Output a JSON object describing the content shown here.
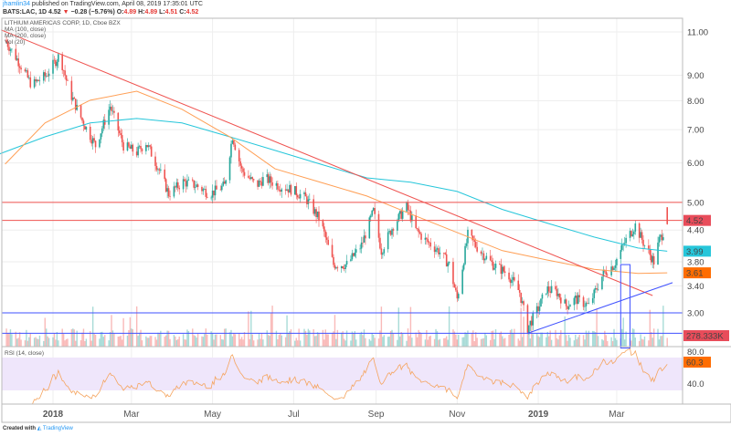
{
  "header": {
    "author": "jhamlin34",
    "published": "published on TradingView.com, April 08, 2019 17:35:01 UTC",
    "symbol": "BATS:LAC, 1D",
    "last": "4.52",
    "change": "−0.28 (−5.76%)",
    "o_label": "O:",
    "o": "4.89",
    "h_label": "H:",
    "h": "4.89",
    "l_label": "L:",
    "l": "4.51",
    "c_label": "C:",
    "c": "4.52"
  },
  "legend": {
    "title": "LITHIUM AMERICAS CORP, 1D, Cboe BZX",
    "ma100": "MA (100, close)",
    "ma200": "MA (200, close)",
    "vol": "Vol (20)",
    "rsi": "RSI (14, close)"
  },
  "footer": {
    "created": "Created with",
    "brand": "TradingView"
  },
  "chart_data": {
    "type": "candlestick",
    "price_scale": "log",
    "ylim": [
      2.6,
      11.5
    ],
    "y_ticks": [
      "11.00",
      "9.00",
      "8.00",
      "7.00",
      "6.00",
      "5.00",
      "4.40",
      "3.80",
      "3.40",
      "3.00"
    ],
    "x_ticks": [
      {
        "label": "2018",
        "date": "2018-01-01",
        "bold": true
      },
      {
        "label": "Mar",
        "date": "2018-03-01"
      },
      {
        "label": "May",
        "date": "2018-05-01"
      },
      {
        "label": "Jul",
        "date": "2018-07-01"
      },
      {
        "label": "Sep",
        "date": "2018-09-01"
      },
      {
        "label": "Nov",
        "date": "2018-11-01"
      },
      {
        "label": "2019",
        "date": "2019-01-01",
        "bold": true
      },
      {
        "label": "Mar",
        "date": "2019-03-01"
      }
    ],
    "close_path": [
      [
        "2017-11-26",
        10.6
      ],
      [
        "2017-12-06",
        9.6
      ],
      [
        "2017-12-16",
        8.6
      ],
      [
        "2017-12-27",
        9.0
      ],
      [
        "2018-01-06",
        9.9
      ],
      [
        "2018-01-13",
        8.4
      ],
      [
        "2018-01-23",
        7.3
      ],
      [
        "2018-02-02",
        6.5
      ],
      [
        "2018-02-13",
        7.8
      ],
      [
        "2018-02-23",
        6.5
      ],
      [
        "2018-03-05",
        6.3
      ],
      [
        "2018-03-12",
        6.6
      ],
      [
        "2018-03-22",
        5.8
      ],
      [
        "2018-03-29",
        5.2
      ],
      [
        "2018-04-09",
        5.5
      ],
      [
        "2018-04-19",
        5.4
      ],
      [
        "2018-04-29",
        5.2
      ],
      [
        "2018-05-10",
        5.4
      ],
      [
        "2018-05-16",
        6.8
      ],
      [
        "2018-05-23",
        5.8
      ],
      [
        "2018-06-03",
        5.4
      ],
      [
        "2018-06-09",
        5.6
      ],
      [
        "2018-06-20",
        5.4
      ],
      [
        "2018-06-30",
        5.3
      ],
      [
        "2018-07-10",
        5.1
      ],
      [
        "2018-07-21",
        4.6
      ],
      [
        "2018-07-31",
        3.75
      ],
      [
        "2018-08-10",
        3.75
      ],
      [
        "2018-08-21",
        4.1
      ],
      [
        "2018-08-30",
        4.8
      ],
      [
        "2018-09-05",
        4.0
      ],
      [
        "2018-09-14",
        4.5
      ],
      [
        "2018-09-24",
        4.9
      ],
      [
        "2018-10-01",
        4.4
      ],
      [
        "2018-10-08",
        4.2
      ],
      [
        "2018-10-18",
        4.0
      ],
      [
        "2018-10-26",
        3.75
      ],
      [
        "2018-11-01",
        3.2
      ],
      [
        "2018-11-09",
        4.3
      ],
      [
        "2018-11-18",
        4.0
      ],
      [
        "2018-11-28",
        3.75
      ],
      [
        "2018-12-09",
        3.6
      ],
      [
        "2018-12-18",
        3.3
      ],
      [
        "2018-12-24",
        2.8
      ],
      [
        "2019-01-02",
        3.1
      ],
      [
        "2019-01-07",
        3.35
      ],
      [
        "2019-01-15",
        3.3
      ],
      [
        "2019-01-22",
        3.1
      ],
      [
        "2019-01-29",
        3.2
      ],
      [
        "2019-02-08",
        3.1
      ],
      [
        "2019-02-19",
        3.6
      ],
      [
        "2019-02-27",
        3.75
      ],
      [
        "2019-03-08",
        4.2
      ],
      [
        "2019-03-15",
        4.5
      ],
      [
        "2019-03-22",
        4.1
      ],
      [
        "2019-03-29",
        3.8
      ],
      [
        "2019-04-02",
        4.2
      ],
      [
        "2019-04-08",
        4.52
      ]
    ],
    "ma100": [
      [
        "2017-11-20",
        6.23
      ],
      [
        "2017-12-26",
        6.77
      ],
      [
        "2018-01-29",
        7.22
      ],
      [
        "2018-03-05",
        7.37
      ],
      [
        "2018-04-08",
        7.22
      ],
      [
        "2018-05-14",
        6.77
      ],
      [
        "2018-06-17",
        6.36
      ],
      [
        "2018-07-21",
        5.97
      ],
      [
        "2018-08-25",
        5.6
      ],
      [
        "2018-09-27",
        5.49
      ],
      [
        "2018-11-01",
        5.26
      ],
      [
        "2018-12-05",
        4.84
      ],
      [
        "2019-01-08",
        4.54
      ],
      [
        "2019-02-12",
        4.26
      ],
      [
        "2019-03-17",
        4.05
      ],
      [
        "2019-04-08",
        3.99
      ]
    ],
    "ma200": [
      [
        "2017-11-26",
        5.97
      ],
      [
        "2017-12-26",
        7.22
      ],
      [
        "2018-01-29",
        8.02
      ],
      [
        "2018-03-05",
        8.36
      ],
      [
        "2018-04-08",
        7.69
      ],
      [
        "2018-05-14",
        6.77
      ],
      [
        "2018-06-17",
        5.84
      ],
      [
        "2018-07-21",
        5.49
      ],
      [
        "2018-08-25",
        5.15
      ],
      [
        "2018-09-27",
        4.74
      ],
      [
        "2018-11-01",
        4.35
      ],
      [
        "2018-12-05",
        4.0
      ],
      [
        "2019-01-08",
        3.83
      ],
      [
        "2019-02-12",
        3.67
      ],
      [
        "2019-03-17",
        3.6
      ],
      [
        "2019-04-08",
        3.61
      ]
    ],
    "drawings": {
      "red_trendline": [
        [
          "2017-11-23",
          11.1
        ],
        [
          "2019-03-28",
          3.25
        ]
      ],
      "red_horizontals": [
        5.0,
        4.6
      ],
      "blue_horizontals": [
        3.0,
        2.73
      ],
      "blue_trendline": [
        [
          "2018-12-24",
          2.73
        ],
        [
          "2019-04-12",
          3.45
        ]
      ],
      "blue_box": [
        [
          "2019-03-04",
          3.75
        ],
        [
          "2019-03-11",
          2.55
        ]
      ]
    },
    "price_labels": {
      "last": "4.52",
      "ma100": "3.99",
      "ma200": "3.61",
      "volume": "278.333K",
      "rsi": "60.3"
    },
    "rsi_ticks": [
      "80.0",
      "40.0"
    ],
    "colors": {
      "up": "#26a69a",
      "down": "#ef5350",
      "ma100": "#26c6da",
      "ma200": "#ff9f55",
      "red_line": "#ef5350",
      "blue_line": "#3f51ff",
      "rsi": "#f5a45e",
      "last": "#e84c5a",
      "ma100_label": "#26c6da",
      "ma200_label": "#ff6d00",
      "rsi_label": "#ff6d00"
    }
  }
}
